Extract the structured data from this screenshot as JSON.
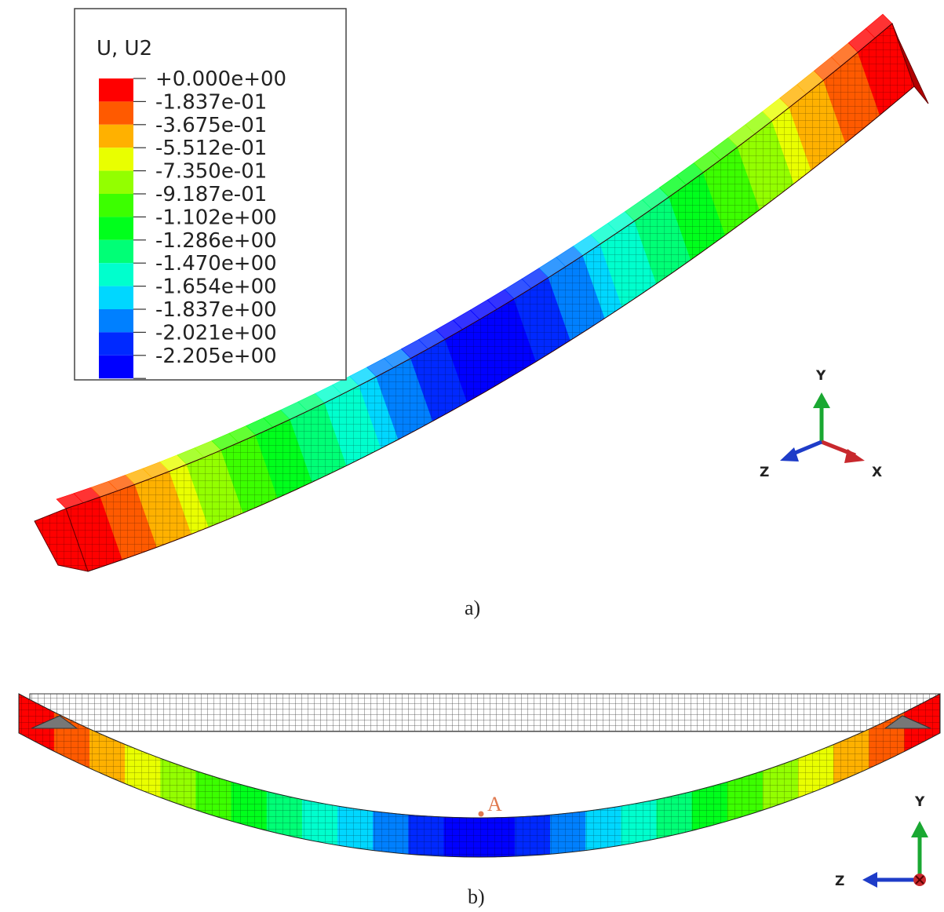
{
  "legend": {
    "title": "U, U2",
    "entries": [
      {
        "label": "+0.000e+00",
        "color": "#ff0000"
      },
      {
        "label": "-1.837e-01",
        "color": "#ff5a00"
      },
      {
        "label": "-3.675e-01",
        "color": "#ffb100"
      },
      {
        "label": "-5.512e-01",
        "color": "#e9ff00"
      },
      {
        "label": "-7.350e-01",
        "color": "#93ff00"
      },
      {
        "label": "-9.187e-01",
        "color": "#3cff00"
      },
      {
        "label": "-1.102e+00",
        "color": "#00ff1c"
      },
      {
        "label": "-1.286e+00",
        "color": "#00ff76"
      },
      {
        "label": "-1.470e+00",
        "color": "#00ffcd"
      },
      {
        "label": "-1.654e+00",
        "color": "#00d7ff"
      },
      {
        "label": "-1.837e+00",
        "color": "#0080ff"
      },
      {
        "label": "-2.021e+00",
        "color": "#0029ff"
      },
      {
        "label": "-2.205e+00",
        "color": "#0000ff"
      }
    ]
  },
  "triad_a": {
    "y": "Y",
    "x": "X",
    "z": "Z",
    "colors": {
      "y": "#1aa832",
      "x": "#c8282d",
      "z": "#1e3cc8"
    }
  },
  "triad_b": {
    "y": "Y",
    "z": "Z"
  },
  "point_label": "A",
  "point_color": "#e07a50",
  "captions": {
    "a": "a)",
    "b": "b)"
  }
}
